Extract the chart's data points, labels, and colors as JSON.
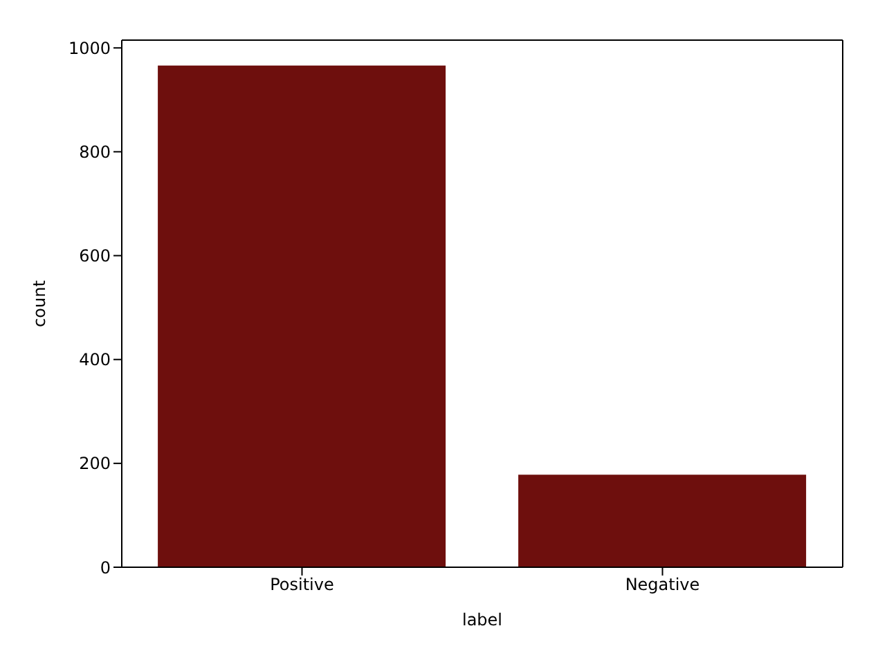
{
  "chart_data": {
    "type": "bar",
    "xlabel": "label",
    "ylabel": "count",
    "categories": [
      "Positive",
      "Negative"
    ],
    "values": [
      966,
      178
    ],
    "color": "#6e0f0d",
    "ylim": [
      0,
      1015
    ],
    "yticks": [
      0,
      200,
      400,
      600,
      800,
      1000
    ],
    "grid": false
  }
}
